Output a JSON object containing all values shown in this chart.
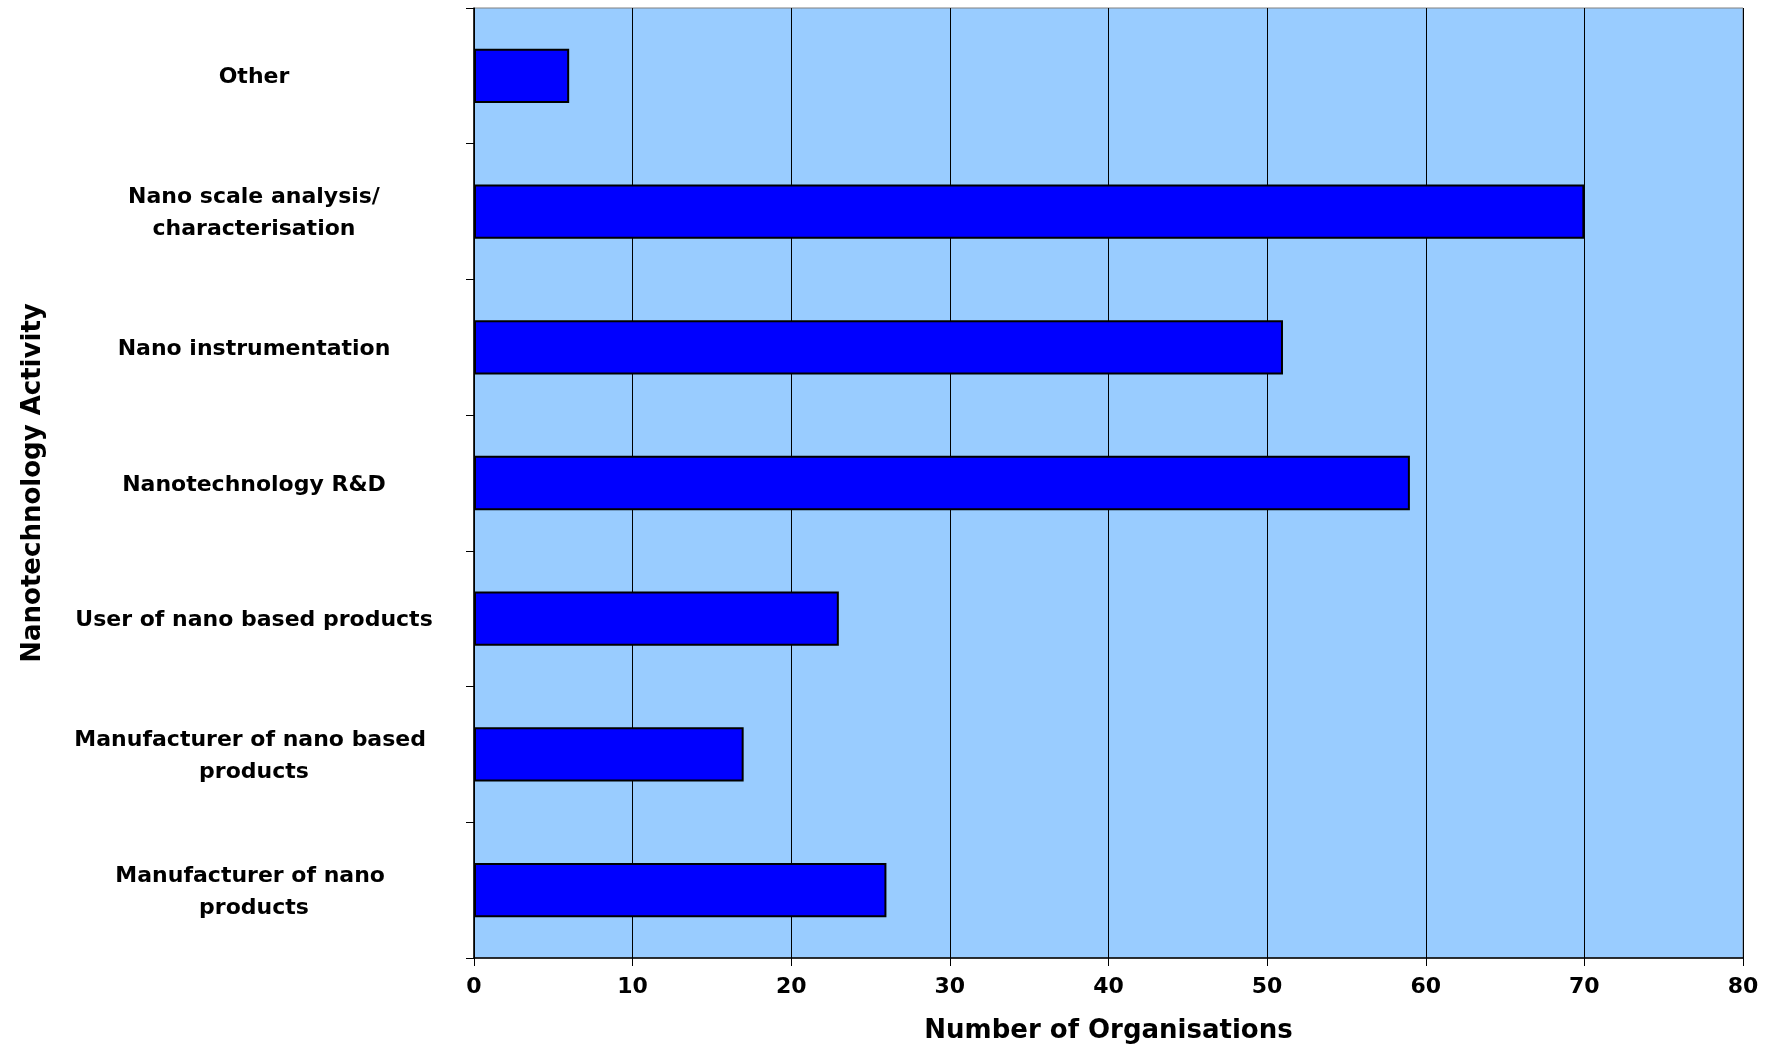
{
  "chart_data": {
    "type": "bar",
    "orientation": "horizontal",
    "xlabel": "Number of Organisations",
    "ylabel": "Nanotechnology Activity",
    "categories": [
      "Other",
      "Nano scale analysis/characterisation",
      "Nano instrumentation",
      "Nanotechnology R&D",
      "User of nano based products",
      "Manufacturer of nano based products",
      "Manufacturer of nano products"
    ],
    "values": [
      6,
      70,
      51,
      59,
      23,
      17,
      26
    ],
    "color": "#0000ff",
    "xlim": [
      0,
      80
    ],
    "xticks": [
      0,
      10,
      20,
      30,
      40,
      50,
      60,
      70,
      80
    ],
    "grid": "x"
  }
}
